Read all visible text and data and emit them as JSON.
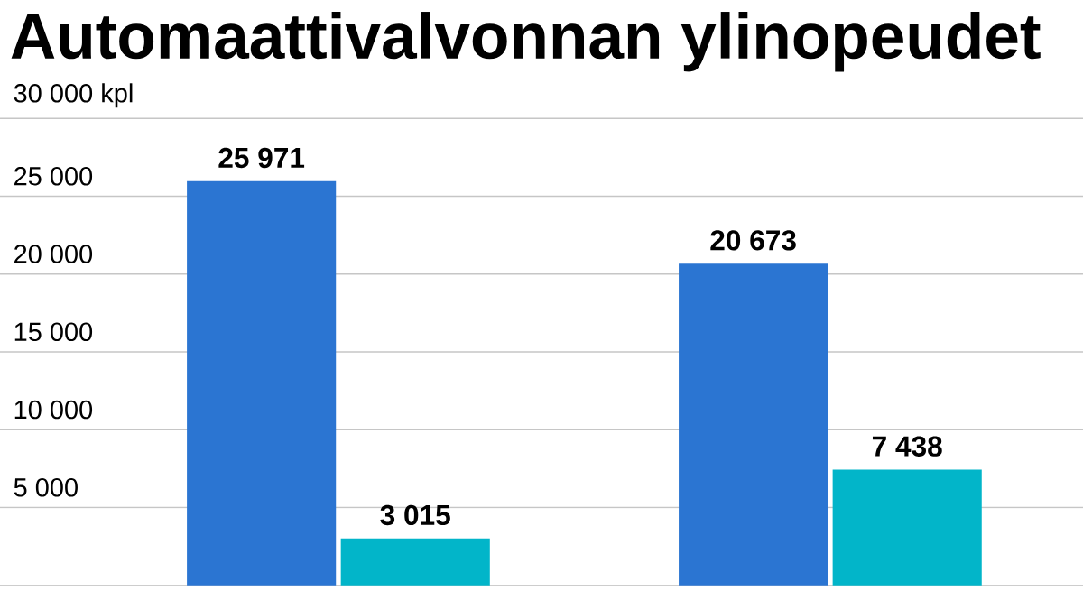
{
  "chart_data": {
    "type": "bar",
    "title": "Automaattivalvonnan ylinopeudet",
    "categories": [
      null,
      null
    ],
    "series": [
      {
        "color": "#2b75d2",
        "values": [
          25971,
          20673
        ],
        "value_labels": [
          "25 971",
          "20 673"
        ]
      },
      {
        "color": "#02b5c9",
        "values": [
          3015,
          7438
        ],
        "value_labels": [
          "3 015",
          "7 438"
        ]
      }
    ],
    "ylim": [
      0,
      30000
    ],
    "yticks": [
      {
        "value": 5000,
        "label": "5 000"
      },
      {
        "value": 10000,
        "label": "10 000"
      },
      {
        "value": 15000,
        "label": "15 000"
      },
      {
        "value": 20000,
        "label": "20 000"
      },
      {
        "value": 25000,
        "label": "25 000"
      },
      {
        "value": 30000,
        "label": "30 000 kpl"
      }
    ],
    "grid": "y"
  }
}
